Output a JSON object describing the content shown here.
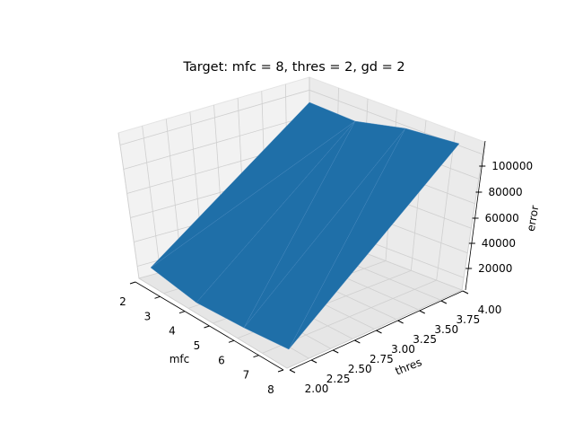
{
  "chart_data": {
    "type": "surface3d",
    "title": "Target: mfc = 8, thres = 2, gd = 2",
    "x_axis": {
      "label": "mfc",
      "ticks": [
        "2",
        "3",
        "4",
        "5",
        "6",
        "7",
        "8"
      ],
      "range": [
        2,
        8
      ]
    },
    "y_axis": {
      "label": "thres",
      "ticks": [
        "2.00",
        "2.25",
        "2.50",
        "2.75",
        "3.00",
        "3.25",
        "3.50",
        "3.75",
        "4.00"
      ],
      "range": [
        2,
        4
      ]
    },
    "z_axis": {
      "label": "error",
      "ticks": [
        "20000",
        "40000",
        "60000",
        "80000",
        "100000"
      ]
    },
    "colors": {
      "surface": "#1f6fa8",
      "pane": "#f2f2f2"
    },
    "grid": true
  }
}
